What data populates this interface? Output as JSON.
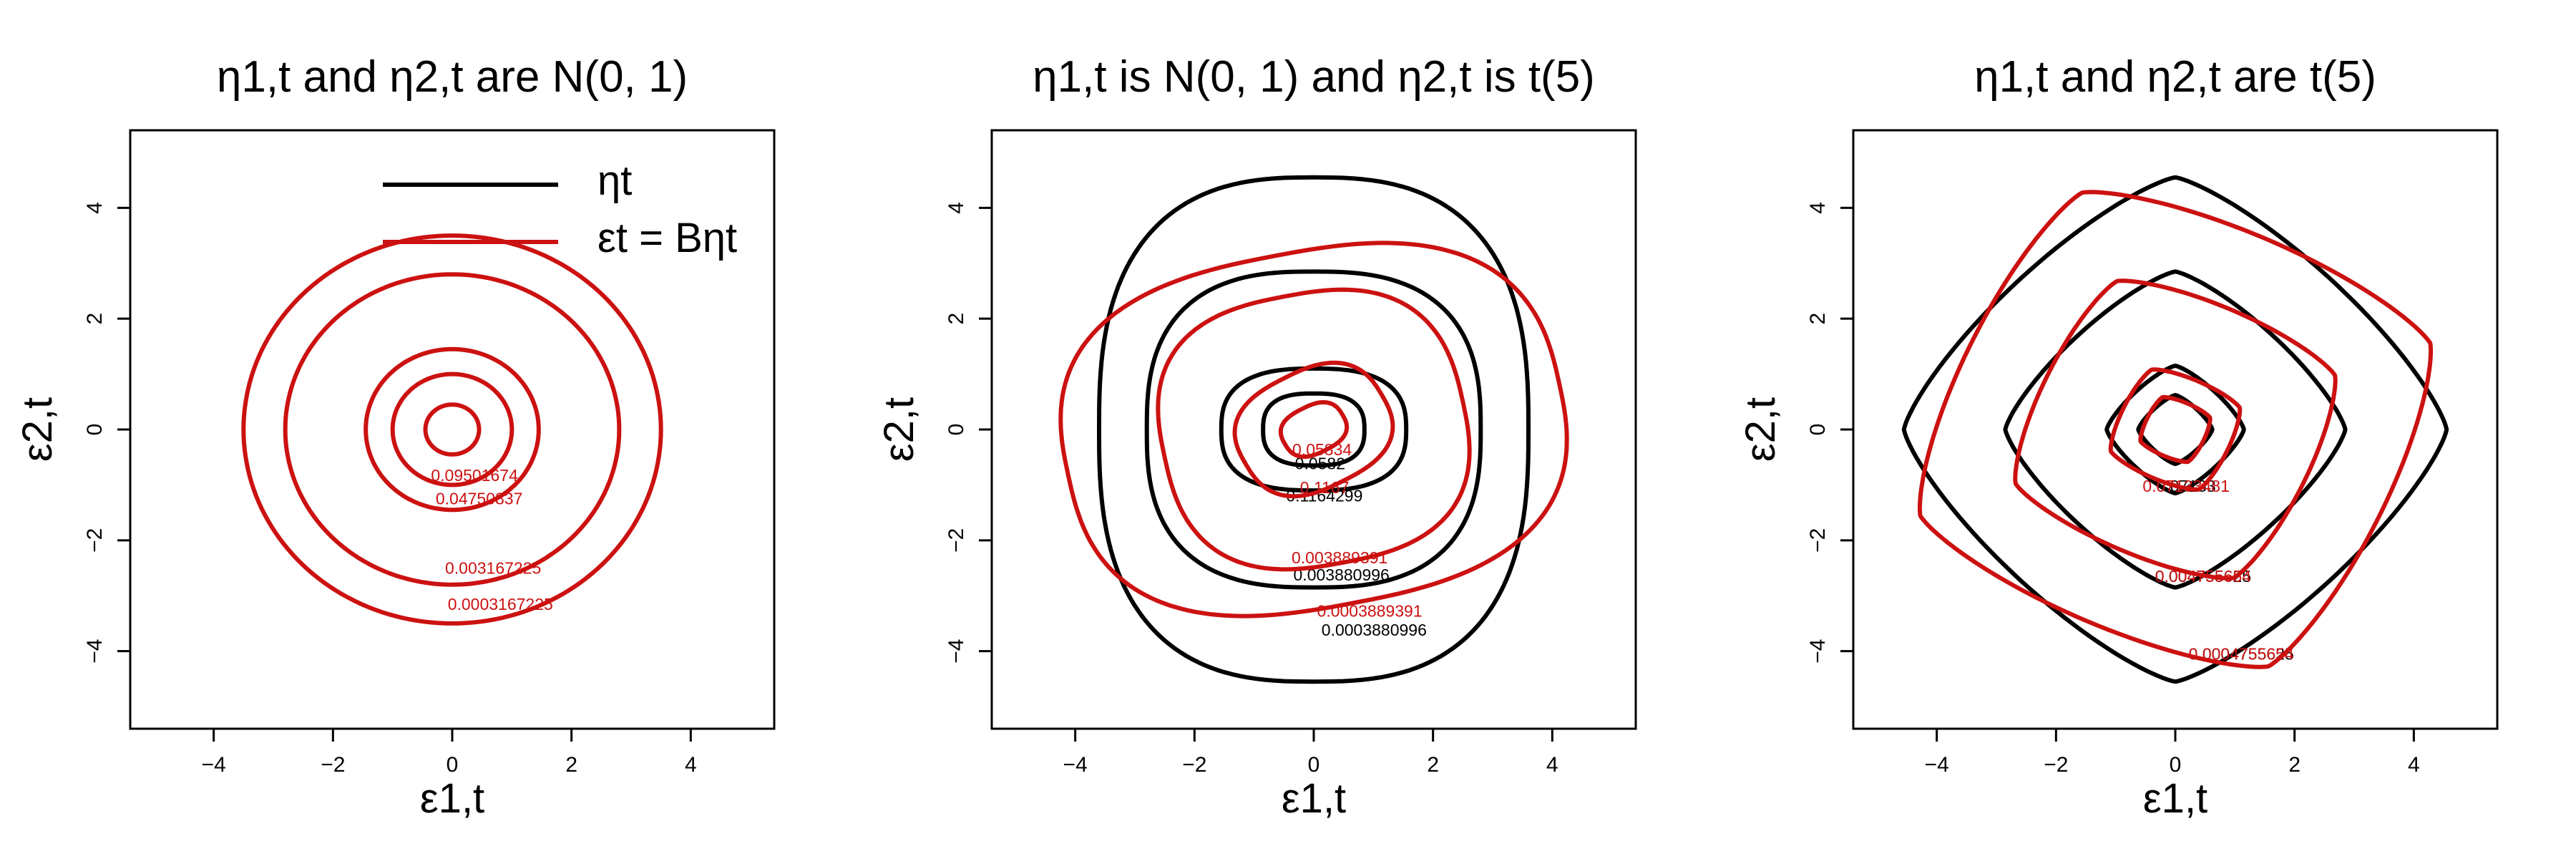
{
  "colors": {
    "eta": "#000000",
    "eps": "#cc1111"
  },
  "legend": {
    "eta_label": "ηt",
    "eps_label": "εt = Bηt"
  },
  "chart_data": [
    {
      "type": "contour",
      "title": "η1,t and η2,t are N(0, 1)",
      "xlabel": "ε1,t",
      "ylabel": "ε2,t",
      "xlim": [
        -5.4,
        5.4
      ],
      "ylim": [
        -5.4,
        5.4
      ],
      "xticks": [
        -4,
        -2,
        0,
        2,
        4
      ],
      "yticks": [
        -4,
        -2,
        0,
        2,
        4
      ],
      "legend_position": "top-right",
      "series": [
        {
          "name": "εt = Bηt",
          "color": "eps",
          "levels": [
            {
              "radius": 3.5,
              "label": "0.0003167225"
            },
            {
              "radius": 2.8,
              "label": "0.003167225"
            },
            {
              "radius": 1.45,
              "label": "0.04750837"
            },
            {
              "radius": 1.0,
              "label": "0.09501674"
            },
            {
              "radius": 0.45,
              "label": ""
            }
          ]
        }
      ]
    },
    {
      "type": "contour",
      "title": "η1,t is N(0, 1) and η2,t is t(5)",
      "xlabel": "ε1,t",
      "ylabel": "ε2,t",
      "xlim": [
        -5.4,
        5.4
      ],
      "ylim": [
        -5.4,
        5.4
      ],
      "xticks": [
        -4,
        -2,
        0,
        2,
        4
      ],
      "yticks": [
        -4,
        -2,
        0,
        2,
        4
      ],
      "series": [
        {
          "name": "ηt",
          "color": "eta",
          "levels": [
            {
              "a": 3.6,
              "b": 4.55,
              "label": "0.0003880996"
            },
            {
              "a": 2.8,
              "b": 2.85,
              "label": "0.003880996"
            },
            {
              "a": 1.55,
              "b": 1.1,
              "label": "0.1164299"
            },
            {
              "a": 0.85,
              "b": 0.65,
              "label": "0.0582"
            }
          ]
        },
        {
          "name": "εt = Bηt",
          "color": "eps",
          "levels": [
            {
              "a": 4.2,
              "b": 3.2,
              "rot": 0.2,
              "label": "0.0003889391"
            },
            {
              "a": 2.55,
              "b": 2.45,
              "rot": 0.2,
              "label": "0.003889391"
            },
            {
              "a": 1.3,
              "b": 1.05,
              "rot": 0.5,
              "label": "0.1167"
            },
            {
              "a": 0.55,
              "b": 0.42,
              "rot": 0.5,
              "label": "0.05834"
            }
          ]
        }
      ]
    },
    {
      "type": "contour",
      "title": "η1,t and η2,t are t(5)",
      "xlabel": "ε1,t",
      "ylabel": "ε2,t",
      "xlim": [
        -5.4,
        5.4
      ],
      "ylim": [
        -5.4,
        5.4
      ],
      "xticks": [
        -4,
        -2,
        0,
        2,
        4
      ],
      "yticks": [
        -4,
        -2,
        0,
        2,
        4
      ],
      "series": [
        {
          "name": "ηt",
          "color": "eta",
          "levels": [
            {
              "a": 4.55,
              "b": 4.55,
              "label": "0.0004755625"
            },
            {
              "a": 2.85,
              "b": 2.85,
              "label": "0.004755625"
            },
            {
              "a": 1.15,
              "b": 1.15,
              "label": "0.07133"
            },
            {
              "a": 0.62,
              "b": 0.62,
              "label": ""
            }
          ]
        },
        {
          "name": "εt = Bηt",
          "color": "eps",
          "levels": [
            {
              "a": 4.55,
              "b": 4.55,
              "rot": 0.35,
              "label": "0.0004755654"
            },
            {
              "a": 2.85,
              "b": 2.85,
              "rot": 0.35,
              "label": "0.004755654"
            },
            {
              "a": 1.15,
              "b": 1.15,
              "rot": 0.35,
              "label": "0.07133481"
            },
            {
              "a": 0.62,
              "b": 0.62,
              "rot": 0.35,
              "label": ""
            }
          ]
        }
      ]
    }
  ]
}
